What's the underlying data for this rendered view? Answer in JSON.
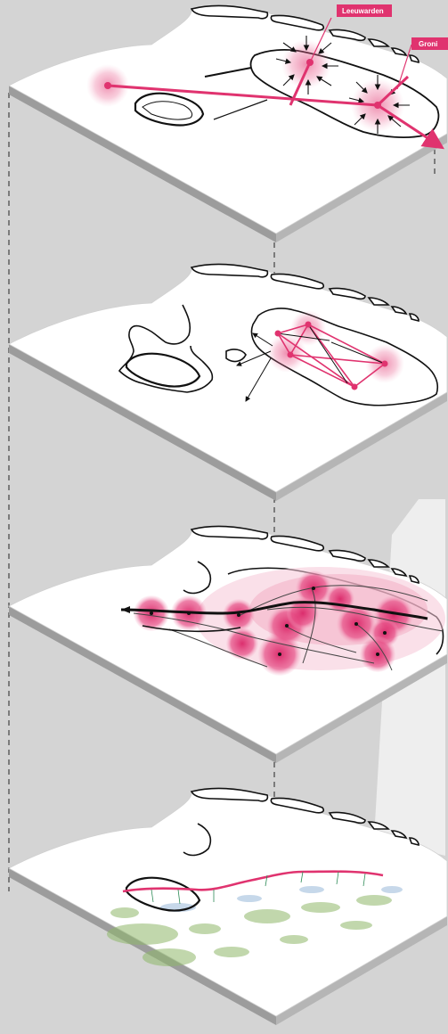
{
  "labels": {
    "city_a": "Leeuwarden",
    "city_b": "Groni"
  },
  "layers": [
    {
      "id": "flows",
      "description_free": true
    },
    {
      "id": "network"
    },
    {
      "id": "corridors"
    },
    {
      "id": "landscape"
    }
  ],
  "colors": {
    "background": "#d4d4d4",
    "plate": "#ffffff",
    "plate_edge": "#9a9a9a",
    "accent": "#e0336f",
    "accent_soft": "#f4a9c4",
    "coast": "#111111",
    "green": "#8fb86a",
    "blue": "#8fb2d6"
  }
}
